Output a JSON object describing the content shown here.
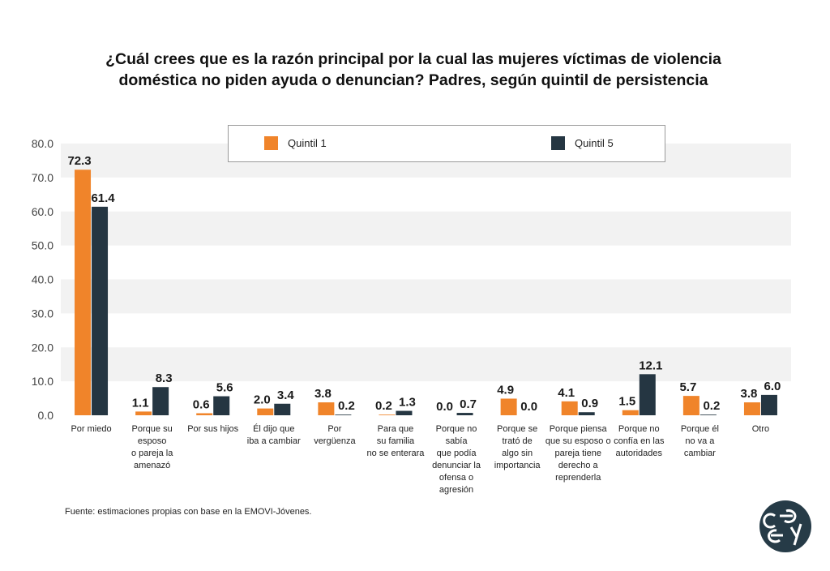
{
  "title_lines": [
    "¿Cuál crees que es la razón principal por la cual las mujeres víctimas de violencia",
    "doméstica no piden ayuda o denuncian? Padres, según quintil de persistencia"
  ],
  "source": "Fuente: estimaciones propias con base en la EMOVI-Jóvenes.",
  "colors": {
    "series1": "#f0842a",
    "series2": "#253642",
    "band": "#f2f2f2",
    "logo": "#263b47"
  },
  "icons": {
    "logo": "ceey-logo-icon"
  },
  "chart_data": {
    "type": "bar",
    "title": "¿Cuál crees que es la razón principal por la cual las mujeres víctimas de violencia doméstica no piden ayuda o denuncian? Padres, según quintil de persistencia",
    "categories": [
      "Por miedo",
      "Porque su esposo o pareja la amenazó",
      "Por sus hijos",
      "Él dijo que iba a cambiar",
      "Por vergüenza",
      "Para que su familia no se enterara",
      "Porque no sabía que podía denunciar la ofensa o agresión",
      "Porque se trató de algo sin importancia",
      "Porque piensa que su esposo o pareja tiene derecho a reprenderla",
      "Porque no confía en las autoridades",
      "Porque él no va a cambiar",
      "Otro"
    ],
    "category_lines": [
      [
        "Por miedo"
      ],
      [
        "Porque su",
        "esposo",
        "o pareja la",
        "amenazó"
      ],
      [
        "Por sus hijos"
      ],
      [
        "Él dijo que",
        "iba a cambiar"
      ],
      [
        "Por",
        "vergüenza"
      ],
      [
        "Para que",
        "su familia",
        "no se enterara"
      ],
      [
        "Porque no",
        "sabía",
        "que podía",
        "denunciar la",
        "ofensa o",
        "agresión"
      ],
      [
        "Porque se",
        "trató de",
        "algo sin",
        "importancia"
      ],
      [
        "Porque piensa",
        "que su esposo o",
        "pareja tiene",
        "derecho a",
        "reprenderla"
      ],
      [
        "Porque no",
        "confía en las",
        "autoridades"
      ],
      [
        "Porque él",
        "no va a",
        "cambiar"
      ],
      [
        "Otro"
      ]
    ],
    "series": [
      {
        "name": "Quintil 1",
        "values": [
          72.3,
          1.1,
          0.6,
          2.0,
          3.8,
          0.2,
          0.0,
          4.9,
          4.1,
          1.5,
          5.7,
          3.8
        ]
      },
      {
        "name": "Quintil 5",
        "values": [
          61.4,
          8.3,
          5.6,
          3.4,
          0.2,
          1.3,
          0.7,
          0.0,
          0.9,
          12.1,
          0.2,
          6.0
        ]
      }
    ],
    "ylim": [
      0,
      80
    ],
    "yticks": [
      "0.0",
      "10.0",
      "20.0",
      "30.0",
      "40.0",
      "50.0",
      "60.0",
      "70.0",
      "80.0"
    ],
    "xlabel": "",
    "ylabel": "",
    "grid": "alternating-bands",
    "legend_position": "top"
  }
}
